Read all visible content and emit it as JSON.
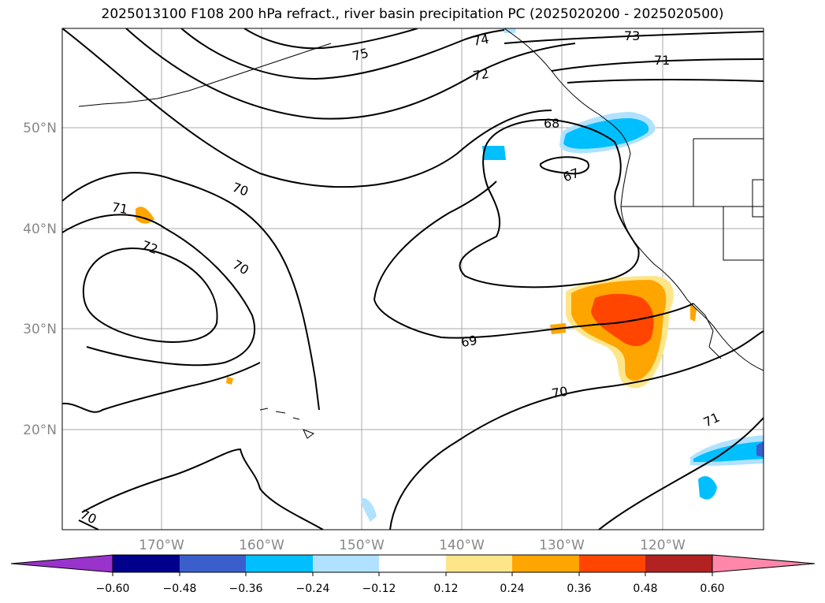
{
  "title": "2025013100 F108 200 hPa refract., river basin precipitation PC (2025020200 - 2025020500)",
  "lat_labels": [
    "50°N",
    "40°N",
    "30°N",
    "20°N"
  ],
  "lon_labels": [
    "170°W",
    "160°W",
    "150°W",
    "140°W",
    "130°W",
    "120°W"
  ],
  "contour_labels": [
    {
      "text": "75"
    },
    {
      "text": "74"
    },
    {
      "text": "73"
    },
    {
      "text": "72"
    },
    {
      "text": "71"
    },
    {
      "text": "68"
    },
    {
      "text": "67"
    },
    {
      "text": "70"
    },
    {
      "text": "71"
    },
    {
      "text": "72"
    },
    {
      "text": "70"
    },
    {
      "text": "69"
    },
    {
      "text": "70"
    },
    {
      "text": "71"
    },
    {
      "text": "70"
    }
  ],
  "colorbar": {
    "colors": [
      "#9933cc",
      "#00008b",
      "#3a5fcd",
      "#00bfff",
      "#b0e2ff",
      "#ffffff",
      "#fde68a",
      "#ffa500",
      "#ff4500",
      "#b22222",
      "#ff88aa"
    ],
    "labels": [
      "−0.60",
      "−0.48",
      "−0.36",
      "−0.24",
      "−0.12",
      "0.12",
      "0.24",
      "0.36",
      "0.48",
      "0.60"
    ]
  },
  "shading_colors": {
    "positive_light": "#fde68a",
    "positive_mid": "#ffa500",
    "positive_strong": "#ff4500",
    "negative_light": "#b0e2ff",
    "negative_mid": "#00bfff",
    "negative_strong": "#3a5fcd"
  }
}
